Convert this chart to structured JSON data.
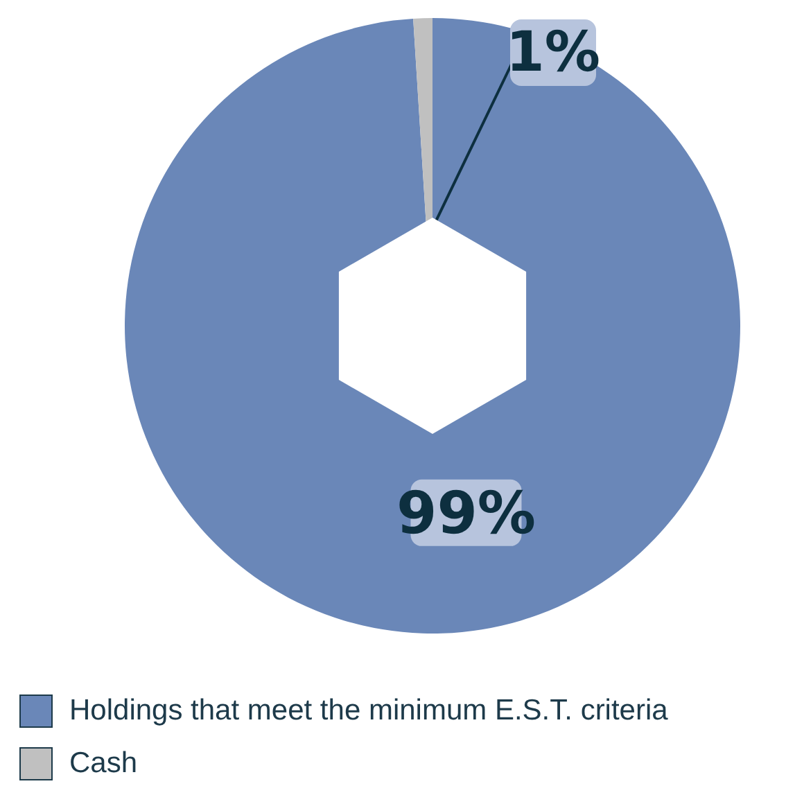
{
  "chart_data": {
    "type": "donut",
    "categories": [
      "Holdings that meet the minimum E.S.T. criteria",
      "Cash"
    ],
    "values": [
      99,
      1
    ],
    "colors": [
      "#6a87b8",
      "#c0c0c0"
    ],
    "value_labels": [
      "99%",
      "1%"
    ],
    "legend": "bottom"
  }
}
